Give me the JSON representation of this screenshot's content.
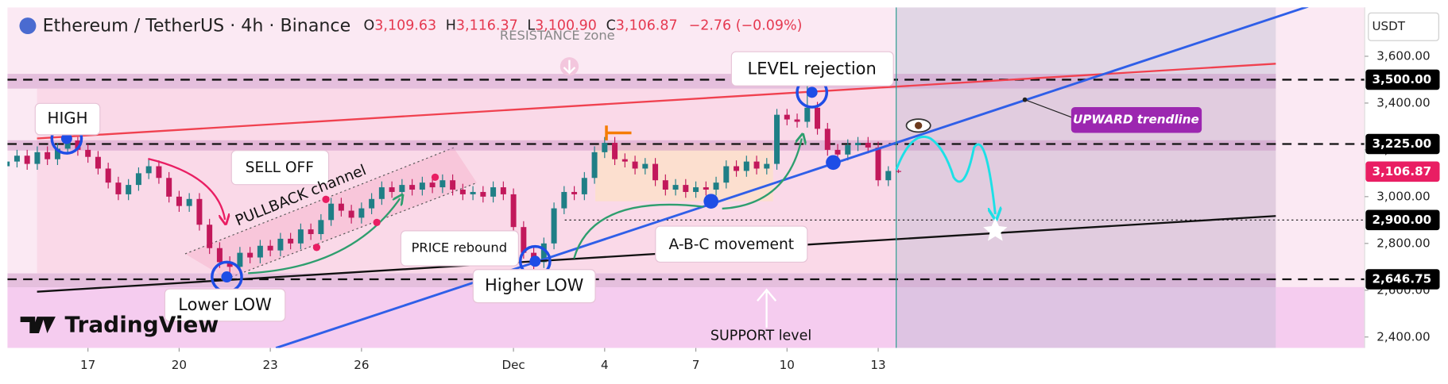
{
  "header": {
    "symbol": "Ethereum / TetherUS · 4h · Binance",
    "ohlc": [
      [
        "O",
        "3,109.63"
      ],
      [
        "H",
        "3,116.37"
      ],
      [
        "L",
        "3,100.90"
      ],
      [
        "C",
        "3,106.87"
      ]
    ],
    "change": "−2.76 (−0.09%)",
    "currency": "USDT",
    "brand": "TradingView"
  },
  "annotations": {
    "resistance": "RESISTANCE zone",
    "rejection": "LEVEL rejection",
    "high": "HIGH",
    "selloff": "SELL OFF",
    "pullback": "PULLBACK channel",
    "rebound": "PRICE rebound",
    "lowerlow": "Lower LOW",
    "higherlow": "Higher LOW",
    "abc": "A-B-C movement",
    "trend": "UPWARD trendline",
    "support": "SUPPORT level"
  },
  "chart_data": {
    "type": "candlestick",
    "up_color": "#1f7f86",
    "down_color": "#c2185b",
    "ylim": [
      2353,
      3809
    ],
    "yticks": [
      {
        "value": 2400,
        "label": "2,400.00"
      },
      {
        "value": 2600,
        "label": "2,600.00"
      },
      {
        "value": 2800,
        "label": "2,800.00"
      },
      {
        "value": 3000,
        "label": "3,000.00"
      },
      {
        "value": 3200,
        "label": "3,200.00"
      },
      {
        "value": 3400,
        "label": "3,400.00"
      },
      {
        "value": 3600,
        "label": "3,600.00"
      }
    ],
    "xticks": [
      {
        "value": 8,
        "label": "17"
      },
      {
        "value": 17,
        "label": "20"
      },
      {
        "value": 26,
        "label": "23"
      },
      {
        "value": 35,
        "label": "26"
      },
      {
        "value": 50,
        "label": "Dec"
      },
      {
        "value": 59,
        "label": "4"
      },
      {
        "value": 68,
        "label": "7"
      },
      {
        "value": 77,
        "label": "10"
      },
      {
        "value": 86,
        "label": "13"
      }
    ],
    "zones": [
      [
        3462,
        3525
      ],
      [
        3197,
        3241
      ],
      [
        2613,
        2672
      ]
    ],
    "levels": [
      {
        "value": 3500,
        "label": "3,500.00",
        "color": "#000000"
      },
      {
        "value": 3225,
        "label": "3,225.00",
        "color": "#000000"
      },
      {
        "value": 3106.87,
        "label": "3,106.87",
        "color": "#e91e63"
      },
      {
        "value": 2900,
        "label": "2,900.00",
        "color": "#000000"
      },
      {
        "value": 2646.75,
        "label": "2,646.75",
        "color": "#000000"
      }
    ],
    "candles": [
      [
        3130,
        3175,
        3105,
        3150
      ],
      [
        3150,
        3200,
        3125,
        3175
      ],
      [
        3175,
        3200,
        3115,
        3140
      ],
      [
        3140,
        3215,
        3115,
        3190
      ],
      [
        3190,
        3215,
        3135,
        3160
      ],
      [
        3160,
        3230,
        3135,
        3205
      ],
      [
        3205,
        3257,
        3180,
        3240
      ],
      [
        3240,
        3255,
        3175,
        3200
      ],
      [
        3200,
        3225,
        3145,
        3170
      ],
      [
        3170,
        3195,
        3095,
        3120
      ],
      [
        3120,
        3145,
        3035,
        3060
      ],
      [
        3060,
        3085,
        2985,
        3010
      ],
      [
        3010,
        3075,
        2985,
        3050
      ],
      [
        3050,
        3125,
        3025,
        3100
      ],
      [
        3100,
        3160,
        3075,
        3130
      ],
      [
        3130,
        3155,
        3055,
        3080
      ],
      [
        3080,
        3105,
        2975,
        3000
      ],
      [
        3000,
        3025,
        2935,
        2960
      ],
      [
        2960,
        3015,
        2935,
        2990
      ],
      [
        2990,
        3015,
        2855,
        2880
      ],
      [
        2880,
        2905,
        2755,
        2780
      ],
      [
        2780,
        2805,
        2695,
        2720
      ],
      [
        2720,
        2745,
        2656,
        2700
      ],
      [
        2700,
        2785,
        2675,
        2760
      ],
      [
        2760,
        2785,
        2715,
        2740
      ],
      [
        2740,
        2815,
        2715,
        2790
      ],
      [
        2790,
        2815,
        2745,
        2770
      ],
      [
        2770,
        2845,
        2745,
        2820
      ],
      [
        2820,
        2845,
        2775,
        2800
      ],
      [
        2800,
        2885,
        2775,
        2860
      ],
      [
        2860,
        2885,
        2815,
        2840
      ],
      [
        2840,
        2925,
        2815,
        2900
      ],
      [
        2900,
        2995,
        2875,
        2970
      ],
      [
        2970,
        2995,
        2915,
        2940
      ],
      [
        2940,
        2965,
        2885,
        2910
      ],
      [
        2910,
        2975,
        2885,
        2950
      ],
      [
        2950,
        3015,
        2925,
        2990
      ],
      [
        2990,
        3065,
        2965,
        3040
      ],
      [
        3040,
        3065,
        2995,
        3020
      ],
      [
        3020,
        3075,
        2995,
        3050
      ],
      [
        3050,
        3075,
        3005,
        3030
      ],
      [
        3030,
        3085,
        3005,
        3060
      ],
      [
        3060,
        3085,
        3015,
        3040
      ],
      [
        3040,
        3095,
        3015,
        3070
      ],
      [
        3070,
        3095,
        3005,
        3030
      ],
      [
        3030,
        3055,
        2985,
        3010
      ],
      [
        3010,
        3045,
        2985,
        3020
      ],
      [
        3020,
        3045,
        2975,
        3000
      ],
      [
        3000,
        3065,
        2975,
        3040
      ],
      [
        3040,
        3065,
        2985,
        3010
      ],
      [
        3010,
        3035,
        2845,
        2870
      ],
      [
        2870,
        2895,
        2735,
        2760
      ],
      [
        2760,
        2785,
        2690,
        2720
      ],
      [
        2720,
        2825,
        2695,
        2800
      ],
      [
        2800,
        2975,
        2775,
        2950
      ],
      [
        2950,
        3045,
        2925,
        3020
      ],
      [
        3020,
        3045,
        2985,
        3010
      ],
      [
        3010,
        3105,
        2985,
        3080
      ],
      [
        3080,
        3215,
        3055,
        3190
      ],
      [
        3190,
        3255,
        3165,
        3230
      ],
      [
        3230,
        3255,
        3135,
        3160
      ],
      [
        3160,
        3185,
        3125,
        3150
      ],
      [
        3150,
        3175,
        3095,
        3120
      ],
      [
        3120,
        3165,
        3095,
        3140
      ],
      [
        3140,
        3165,
        3045,
        3070
      ],
      [
        3070,
        3095,
        3005,
        3030
      ],
      [
        3030,
        3075,
        3005,
        3050
      ],
      [
        3050,
        3075,
        2995,
        3020
      ],
      [
        3020,
        3065,
        2995,
        3040
      ],
      [
        3040,
        3065,
        3005,
        3030
      ],
      [
        3030,
        3085,
        3005,
        3060
      ],
      [
        3060,
        3155,
        3035,
        3130
      ],
      [
        3130,
        3155,
        3085,
        3110
      ],
      [
        3110,
        3175,
        3085,
        3150
      ],
      [
        3150,
        3175,
        3095,
        3120
      ],
      [
        3120,
        3165,
        3095,
        3140
      ],
      [
        3140,
        3375,
        3115,
        3350
      ],
      [
        3350,
        3375,
        3305,
        3330
      ],
      [
        3330,
        3355,
        3295,
        3320
      ],
      [
        3320,
        3485,
        3295,
        3380
      ],
      [
        3380,
        3405,
        3265,
        3290
      ],
      [
        3290,
        3315,
        3175,
        3200
      ],
      [
        3200,
        3225,
        3155,
        3180
      ],
      [
        3180,
        3245,
        3155,
        3220
      ],
      [
        3220,
        3255,
        3195,
        3230
      ],
      [
        3230,
        3255,
        3185,
        3210
      ],
      [
        3210,
        3235,
        3045,
        3070
      ],
      [
        3070,
        3130,
        3045,
        3109.63
      ],
      [
        3109.63,
        3116.37,
        3100.9,
        3106.87
      ]
    ]
  }
}
